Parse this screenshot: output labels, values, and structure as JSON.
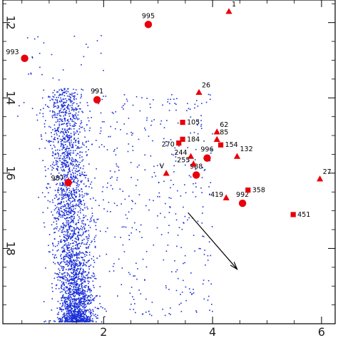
{
  "chart_data": {
    "type": "scatter",
    "title": "",
    "xlabel": "",
    "ylabel": "",
    "xlim": [
      0.15,
      6.25
    ],
    "ylim": [
      20.0,
      11.4
    ],
    "x_ticks": [
      {
        "value": 2,
        "label": "2"
      },
      {
        "value": 4,
        "label": "4"
      },
      {
        "value": 6,
        "label": "6"
      }
    ],
    "y_ticks": [
      {
        "value": 12,
        "label": "12"
      },
      {
        "value": 14,
        "label": "14"
      },
      {
        "value": 16,
        "label": "16"
      },
      {
        "value": 18,
        "label": "18"
      }
    ],
    "marker_color": "#e8000a",
    "background_color": "#1a30d8",
    "arrow": {
      "from": [
        3.55,
        17.05
      ],
      "to": [
        4.45,
        18.55
      ],
      "color": "#000000"
    },
    "circles": [
      {
        "label": "995",
        "x": 2.82,
        "y": 12.05
      },
      {
        "label": "993",
        "x": 0.55,
        "y": 12.95
      },
      {
        "label": "991",
        "x": 1.88,
        "y": 14.05
      },
      {
        "label": "996",
        "x": 3.9,
        "y": 15.6
      },
      {
        "label": "988",
        "x": 3.7,
        "y": 16.05
      },
      {
        "label": "992",
        "x": 4.55,
        "y": 16.8
      },
      {
        "label": "987",
        "x": 1.35,
        "y": 16.25
      }
    ],
    "triangles": [
      {
        "label": "1",
        "x": 4.3,
        "y": 11.7
      },
      {
        "label": "26",
        "x": 3.75,
        "y": 13.85
      },
      {
        "label": "62",
        "x": 4.08,
        "y": 14.9
      },
      {
        "label": "85",
        "x": 4.08,
        "y": 15.1
      },
      {
        "label": "244",
        "x": 3.6,
        "y": 15.55
      },
      {
        "label": "132",
        "x": 4.45,
        "y": 15.55
      },
      {
        "label": "255",
        "x": 3.65,
        "y": 15.75
      },
      {
        "label": "V",
        "x": 3.15,
        "y": 16.0
      },
      {
        "label": "419",
        "x": 4.25,
        "y": 16.65
      },
      {
        "label": "27",
        "x": 5.97,
        "y": 16.15
      }
    ],
    "squares": [
      {
        "label": "105",
        "x": 3.45,
        "y": 14.65
      },
      {
        "label": "184",
        "x": 3.45,
        "y": 15.1
      },
      {
        "label": "270",
        "x": 3.38,
        "y": 15.2
      },
      {
        "label": "154",
        "x": 4.15,
        "y": 15.25
      },
      {
        "label": "358",
        "x": 4.65,
        "y": 16.45
      },
      {
        "label": "451",
        "x": 5.48,
        "y": 17.1
      }
    ]
  }
}
